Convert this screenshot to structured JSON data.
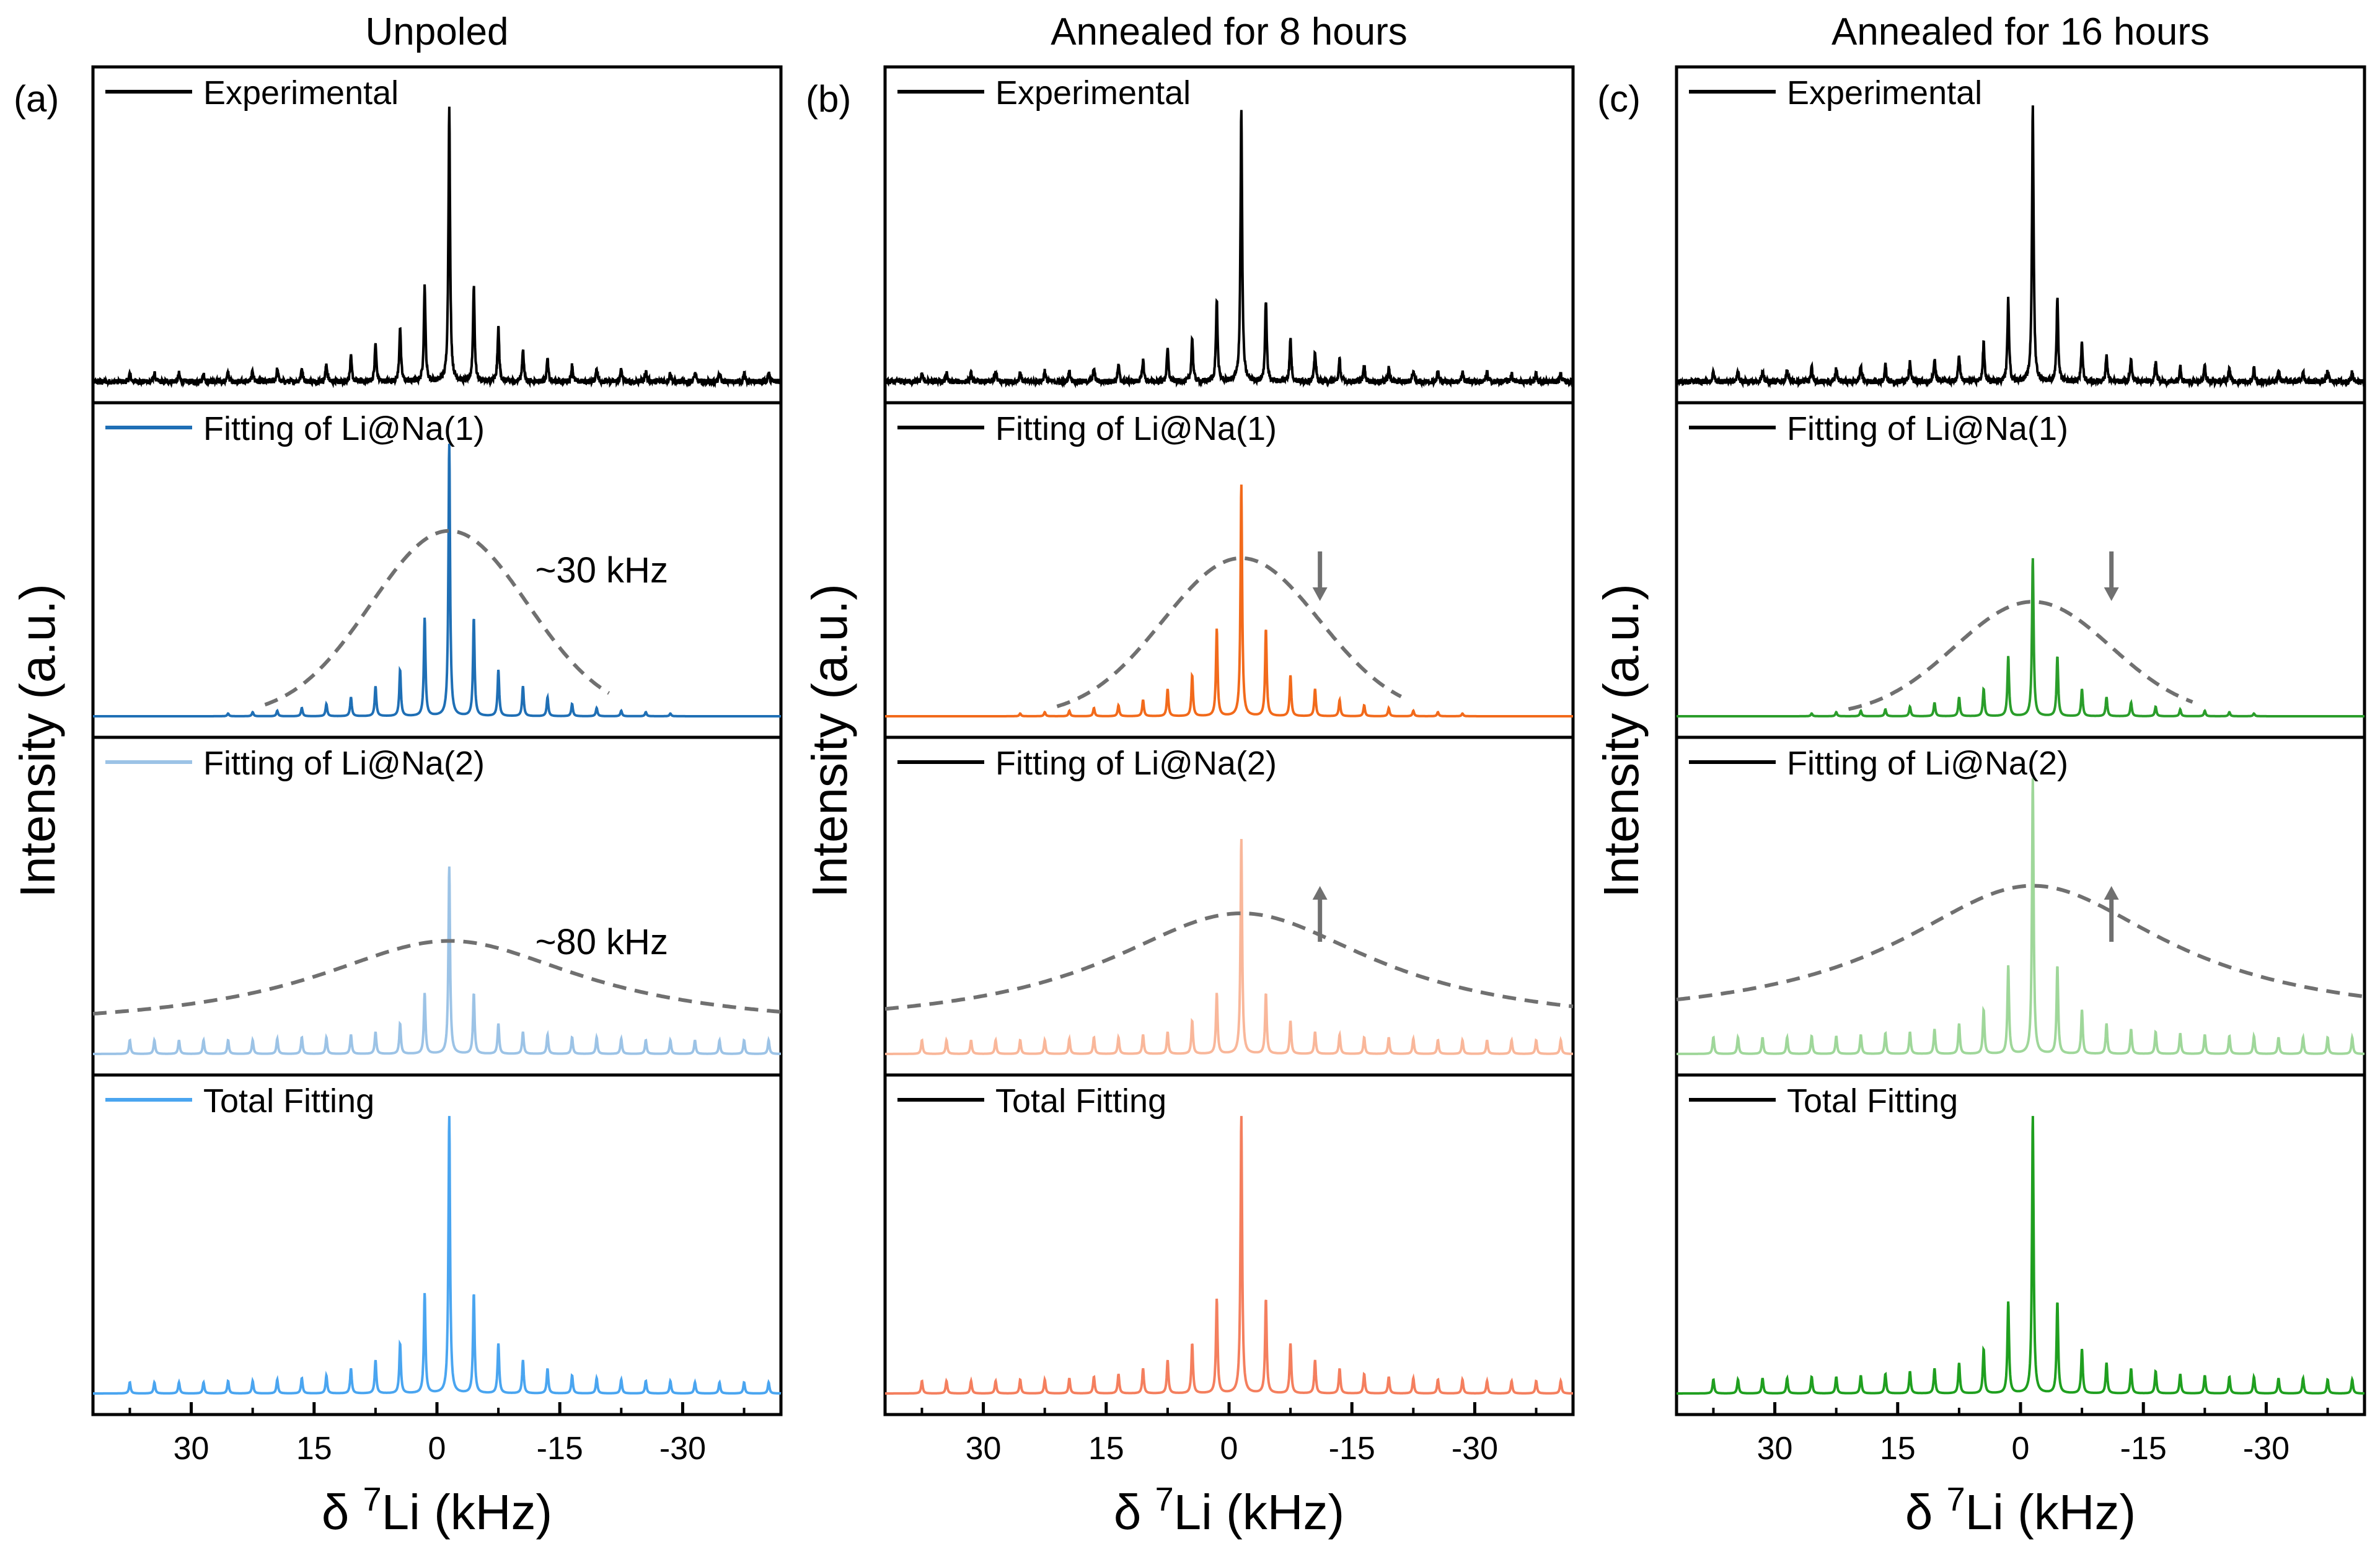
{
  "figure": {
    "ylabel": "Intensity (a.u.)",
    "xlabel_prefix": "δ ",
    "xlabel_sup": "7",
    "xlabel_rest": "Li (kHz)"
  },
  "colors": {
    "experimental": "#000000",
    "dashed_envelope": "#707070",
    "arrow": "#707070",
    "a_na1": "#1f6fb5",
    "a_na2": "#9cc3e6",
    "a_total": "#4aa5f0",
    "b_na1": "#f26a1b",
    "b_na2": "#f9b79a",
    "b_total": "#f47f5e",
    "c_na1": "#2a9d2a",
    "c_na2": "#9fd79a",
    "c_total": "#1f9f1f",
    "legend_black": "#000000"
  },
  "chart_data": [
    {
      "type": "line",
      "panel_label": "(a)",
      "title": "Unpoled",
      "xlabel": "δ 7Li (kHz)",
      "ylabel": "Intensity (a.u.)",
      "xlim": [
        42,
        -42
      ],
      "xticks": [
        30,
        15,
        0,
        -15,
        -30
      ],
      "xtick_labels": [
        "30",
        "15",
        "0",
        "-15",
        "-30"
      ],
      "center_khz": -1.5,
      "sideband_spacing_khz": 3.0,
      "sideband_orders": [
        -13,
        13
      ],
      "series": [
        {
          "name": "Experimental",
          "legend_color_key": "experimental",
          "color_key": "experimental",
          "peak_heights": [
            1.0,
            0.35,
            0.35,
            0.2,
            0.2,
            0.12,
            0.14,
            0.08,
            0.09,
            0.06,
            0.065,
            0.05,
            0.05,
            0.045,
            0.045,
            0.04,
            0.04,
            0.035,
            0.035,
            0.03,
            0.03,
            0.03,
            0.03,
            0.03,
            0.03,
            0.03,
            0.03
          ],
          "noise": true
        },
        {
          "name": "Fitting of Li@Na(1)",
          "legend_color_key": "a_na1",
          "color_key": "a_na1",
          "peak_heights": [
            1.0,
            0.36,
            0.36,
            0.17,
            0.17,
            0.11,
            0.11,
            0.07,
            0.07,
            0.045,
            0.045,
            0.03,
            0.03,
            0.02,
            0.02,
            0.015,
            0.015,
            0.01,
            0.01,
            0.0,
            0.0,
            0.0,
            0.0,
            0.0,
            0.0,
            0.0,
            0.0
          ],
          "envelope_fwhm_khz": 30,
          "envelope_height": 0.68,
          "envelope_baseline": 0.0,
          "envelope_range_khz": [
            21,
            -21
          ],
          "annotation": "~30 kHz",
          "arrow": "none"
        },
        {
          "name": "Fitting of Li@Na(2)",
          "legend_color_key": "a_na2",
          "color_key": "a_na2",
          "peak_heights": [
            0.68,
            0.22,
            0.22,
            0.11,
            0.11,
            0.08,
            0.08,
            0.07,
            0.07,
            0.06,
            0.06,
            0.06,
            0.06,
            0.055,
            0.055,
            0.05,
            0.05,
            0.05,
            0.05,
            0.05,
            0.05,
            0.05,
            0.05,
            0.05,
            0.05,
            0.05,
            0.05
          ],
          "envelope_fwhm_khz": 80,
          "envelope_height": 0.32,
          "envelope_baseline": 0.09,
          "envelope_range_khz": [
            42,
            -42
          ],
          "annotation": "~80 kHz",
          "arrow": "none"
        },
        {
          "name": "Total Fitting",
          "legend_color_key": "a_total",
          "color_key": "a_total",
          "peak_heights": [
            1.0,
            0.36,
            0.36,
            0.18,
            0.18,
            0.12,
            0.12,
            0.09,
            0.09,
            0.065,
            0.065,
            0.055,
            0.055,
            0.05,
            0.05,
            0.045,
            0.045,
            0.045,
            0.045,
            0.04,
            0.04,
            0.04,
            0.04,
            0.04,
            0.04,
            0.04,
            0.04
          ]
        }
      ]
    },
    {
      "type": "line",
      "panel_label": "(b)",
      "title": "Annealed for 8 hours",
      "xlabel": "δ 7Li (kHz)",
      "ylabel": "Intensity (a.u.)",
      "xlim": [
        42,
        -42
      ],
      "xticks": [
        30,
        15,
        0,
        -15,
        -30
      ],
      "xtick_labels": [
        "30",
        "15",
        "0",
        "-15",
        "-30"
      ],
      "center_khz": -1.5,
      "sideband_spacing_khz": 3.0,
      "sideband_orders": [
        -13,
        13
      ],
      "series": [
        {
          "name": "Experimental",
          "legend_color_key": "legend_black",
          "color_key": "experimental",
          "peak_heights": [
            1.0,
            0.3,
            0.3,
            0.16,
            0.16,
            0.11,
            0.12,
            0.08,
            0.08,
            0.06,
            0.06,
            0.05,
            0.05,
            0.04,
            0.04,
            0.04,
            0.04,
            0.035,
            0.035,
            0.035,
            0.035,
            0.03,
            0.03,
            0.03,
            0.03,
            0.03,
            0.03
          ],
          "noise": true
        },
        {
          "name": "Fitting of Li@Na(1)",
          "legend_color_key": "legend_black",
          "color_key": "b_na1",
          "peak_heights": [
            0.85,
            0.32,
            0.32,
            0.15,
            0.15,
            0.1,
            0.1,
            0.06,
            0.06,
            0.04,
            0.04,
            0.03,
            0.03,
            0.02,
            0.02,
            0.015,
            0.015,
            0.01,
            0.01,
            0.0,
            0.0,
            0.0,
            0.0,
            0.0,
            0.0,
            0.0,
            0.0
          ],
          "envelope_fwhm_khz": 30,
          "envelope_height": 0.58,
          "envelope_baseline": 0.0,
          "envelope_range_khz": [
            21,
            -21
          ],
          "annotation": "",
          "arrow": "down"
        },
        {
          "name": "Fitting of Li@Na(2)",
          "legend_color_key": "legend_black",
          "color_key": "b_na2",
          "peak_heights": [
            0.78,
            0.22,
            0.22,
            0.12,
            0.12,
            0.08,
            0.08,
            0.07,
            0.07,
            0.06,
            0.06,
            0.06,
            0.06,
            0.055,
            0.055,
            0.05,
            0.05,
            0.05,
            0.05,
            0.05,
            0.05,
            0.05,
            0.05,
            0.05,
            0.05,
            0.05,
            0.05
          ],
          "envelope_fwhm_khz": 80,
          "envelope_height": 0.42,
          "envelope_baseline": 0.09,
          "envelope_range_khz": [
            42,
            -42
          ],
          "annotation": "",
          "arrow": "up"
        },
        {
          "name": "Total Fitting",
          "legend_color_key": "legend_black",
          "color_key": "b_total",
          "peak_heights": [
            1.0,
            0.34,
            0.34,
            0.18,
            0.18,
            0.12,
            0.12,
            0.09,
            0.09,
            0.07,
            0.07,
            0.06,
            0.06,
            0.055,
            0.055,
            0.05,
            0.05,
            0.05,
            0.05,
            0.045,
            0.045,
            0.045,
            0.045,
            0.045,
            0.045,
            0.045,
            0.045
          ]
        }
      ]
    },
    {
      "type": "line",
      "panel_label": "(c)",
      "title": "Annealed for 16 hours",
      "xlabel": "δ 7Li (kHz)",
      "ylabel": "Intensity (a.u.)",
      "xlim": [
        42,
        -42
      ],
      "xticks": [
        30,
        15,
        0,
        -15,
        -30
      ],
      "xtick_labels": [
        "30",
        "15",
        "0",
        "-15",
        "-30"
      ],
      "center_khz": -1.5,
      "sideband_spacing_khz": 3.0,
      "sideband_orders": [
        -13,
        13
      ],
      "series": [
        {
          "name": "Experimental",
          "legend_color_key": "legend_black",
          "color_key": "experimental",
          "peak_heights": [
            1.0,
            0.3,
            0.3,
            0.14,
            0.14,
            0.1,
            0.1,
            0.08,
            0.08,
            0.07,
            0.07,
            0.06,
            0.06,
            0.06,
            0.06,
            0.05,
            0.05,
            0.05,
            0.05,
            0.045,
            0.045,
            0.04,
            0.04,
            0.04,
            0.04,
            0.035,
            0.035
          ],
          "noise": true
        },
        {
          "name": "Fitting of Li@Na(1)",
          "legend_color_key": "legend_black",
          "color_key": "c_na1",
          "peak_heights": [
            0.58,
            0.22,
            0.22,
            0.1,
            0.1,
            0.07,
            0.07,
            0.05,
            0.05,
            0.035,
            0.035,
            0.025,
            0.025,
            0.02,
            0.02,
            0.015,
            0.015,
            0.01,
            0.01,
            0.0,
            0.0,
            0.0,
            0.0,
            0.0,
            0.0,
            0.0,
            0.0
          ],
          "envelope_fwhm_khz": 30,
          "envelope_height": 0.42,
          "envelope_baseline": 0.0,
          "envelope_range_khz": [
            21,
            -21
          ],
          "annotation": "",
          "arrow": "down"
        },
        {
          "name": "Fitting of Li@Na(2)",
          "legend_color_key": "legend_black",
          "color_key": "c_na2",
          "peak_heights": [
            1.0,
            0.32,
            0.32,
            0.16,
            0.16,
            0.11,
            0.11,
            0.09,
            0.09,
            0.08,
            0.08,
            0.075,
            0.075,
            0.07,
            0.07,
            0.065,
            0.065,
            0.065,
            0.065,
            0.06,
            0.06,
            0.06,
            0.06,
            0.06,
            0.06,
            0.06,
            0.06
          ],
          "envelope_fwhm_khz": 80,
          "envelope_height": 0.5,
          "envelope_baseline": 0.11,
          "envelope_range_khz": [
            42,
            -42
          ],
          "annotation": "",
          "arrow": "up"
        },
        {
          "name": "Total Fitting",
          "legend_color_key": "legend_black",
          "color_key": "c_total",
          "peak_heights": [
            1.0,
            0.33,
            0.33,
            0.16,
            0.16,
            0.11,
            0.11,
            0.09,
            0.09,
            0.08,
            0.08,
            0.07,
            0.07,
            0.065,
            0.065,
            0.06,
            0.06,
            0.06,
            0.06,
            0.055,
            0.055,
            0.055,
            0.055,
            0.05,
            0.05,
            0.05,
            0.05
          ]
        }
      ]
    }
  ]
}
